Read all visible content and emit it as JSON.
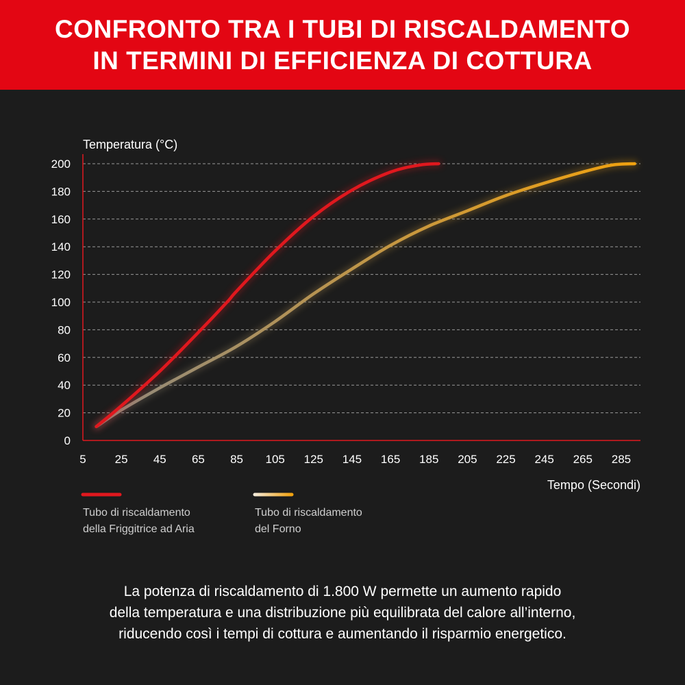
{
  "header": {
    "title_line1": "CONFRONTO TRA I TUBI DI RISCALDAMENTO",
    "title_line2": "IN TERMINI DI EFFICIENZA DI COTTURA"
  },
  "footer": {
    "line1": "La potenza di riscaldamento di 1.800 W permette un aumento rapido",
    "line2": "della temperatura e una distribuzione più equilibrata del calore all’interno,",
    "line3": "riducendo così i tempi di cottura e aumentando il risparmio energetico."
  },
  "colors": {
    "banner": "#e30613",
    "background": "#1c1c1c",
    "air_fryer": "#e0181e",
    "oven_start": "#8f8a80",
    "oven_end": "#f2a20e",
    "axis": "#e0181e",
    "grid": "#9a9a9a"
  },
  "chart_data": {
    "type": "line",
    "title": "",
    "xlabel": "Tempo (Secondi)",
    "ylabel": "Temperatura (°C)",
    "xlim": [
      5,
      295
    ],
    "ylim": [
      0,
      200
    ],
    "xticks": [
      5,
      25,
      45,
      65,
      85,
      105,
      125,
      145,
      165,
      185,
      205,
      225,
      245,
      265,
      285
    ],
    "yticks": [
      0,
      20,
      40,
      60,
      80,
      100,
      120,
      140,
      160,
      180,
      200
    ],
    "grid": true,
    "legend_position": "bottom-left",
    "series": [
      {
        "name": "Tubo di riscaldamento della Friggitrice ad Aria",
        "legend_lines": [
          "Tubo di riscaldamento",
          "della Friggitrice ad Aria"
        ],
        "color_key": "air_fryer",
        "x": [
          12,
          25,
          45,
          65,
          80,
          85,
          105,
          125,
          145,
          165,
          180,
          190
        ],
        "y": [
          10,
          25,
          50,
          78,
          100,
          108,
          137,
          162,
          181,
          194,
          199,
          200
        ]
      },
      {
        "name": "Tubo di riscaldamento del Forno",
        "legend_lines": [
          "Tubo di riscaldamento",
          "del Forno"
        ],
        "color_key": "oven_end",
        "x": [
          12,
          25,
          45,
          65,
          85,
          105,
          125,
          145,
          165,
          185,
          205,
          225,
          245,
          265,
          280,
          292
        ],
        "y": [
          10,
          22,
          38,
          53,
          68,
          86,
          106,
          124,
          141,
          155,
          166,
          177,
          186,
          194,
          199,
          200
        ]
      }
    ]
  }
}
